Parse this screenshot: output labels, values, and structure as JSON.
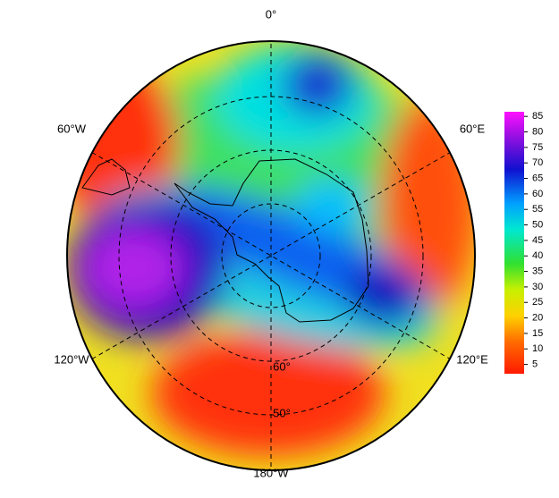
{
  "map": {
    "longitude_labels": {
      "top": "0°",
      "upper_right": "60°E",
      "lower_right": "120°E",
      "bottom": "180°W",
      "lower_left": "120°W",
      "upper_left": "60°W"
    },
    "latitude_labels": [
      "60°",
      "50°"
    ],
    "colorbar": {
      "range": [
        2,
        86.5
      ],
      "ticks": [
        5,
        10,
        15,
        20,
        25,
        30,
        35,
        40,
        45,
        50,
        55,
        60,
        65,
        70,
        75,
        80,
        85
      ]
    }
  }
}
